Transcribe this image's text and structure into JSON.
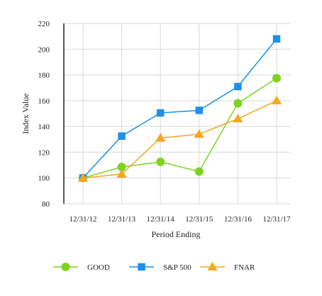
{
  "chart_data": {
    "type": "line",
    "title": "",
    "xlabel": "Period Ending",
    "ylabel": "Index Value",
    "categories": [
      "12/31/12",
      "12/31/13",
      "12/31/14",
      "12/31/15",
      "12/31/16",
      "12/31/17"
    ],
    "ylim": [
      80,
      220
    ],
    "yticks": [
      80,
      100,
      120,
      140,
      160,
      180,
      200,
      220
    ],
    "grid": true,
    "legend_position": "bottom",
    "series": [
      {
        "name": "GOOD",
        "marker": "circle",
        "color": "#7ed321",
        "values": [
          100,
          108.5,
          112.5,
          105,
          158,
          177.5
        ]
      },
      {
        "name": "S&P 500",
        "marker": "square",
        "color": "#1e90e8",
        "values": [
          100,
          132.5,
          150.5,
          152.5,
          171,
          208
        ]
      },
      {
        "name": "FNAR",
        "marker": "triangle",
        "color": "#f5a623",
        "values": [
          100,
          103,
          131,
          134,
          146,
          160
        ]
      }
    ]
  }
}
